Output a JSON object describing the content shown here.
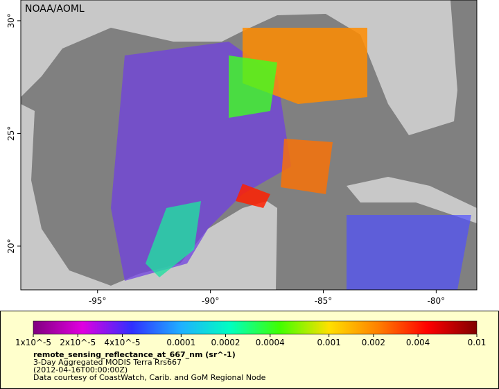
{
  "map": {
    "title": "NOAA/AOML",
    "xlim": [
      -98.4,
      -78.2
    ],
    "ylim": [
      18.06,
      30.92
    ],
    "xticks": [
      {
        "value": -95,
        "label": "-95°"
      },
      {
        "value": -90,
        "label": "-90°"
      },
      {
        "value": -85,
        "label": "-85°"
      },
      {
        "value": -80,
        "label": "-80°"
      }
    ],
    "yticks": [
      {
        "value": 20,
        "label": "20°"
      },
      {
        "value": 25,
        "label": "25°"
      },
      {
        "value": 30,
        "label": "30°"
      }
    ]
  },
  "colorbar": {
    "log_scale": true,
    "lim": [
      1e-05,
      0.01
    ],
    "palette": [
      "#80007f",
      "#e000e0",
      "#3030ff",
      "#20b0ff",
      "#00ffc0",
      "#40ff00",
      "#ffe000",
      "#ff8000",
      "#ff0000",
      "#800000"
    ],
    "ticks": [
      {
        "value": 1e-05,
        "label": "1x10^-5"
      },
      {
        "value": 2e-05,
        "label": "2x10^-5"
      },
      {
        "value": 4e-05,
        "label": "4x10^-5"
      },
      0.0001,
      0.0002,
      0.0004,
      0.001,
      0.002,
      0.004,
      0.01
    ]
  },
  "legend": {
    "variable": "remote_sensing_reflectance_at_667_nm (sr^-1)",
    "dataset": "3-Day Aggregated MODIS Terra Rrs667",
    "time": "(2012-04-16T00:00:00Z)",
    "credit": "Data courtesy of CoastWatch, Carib. and GoM Regional Node"
  }
}
